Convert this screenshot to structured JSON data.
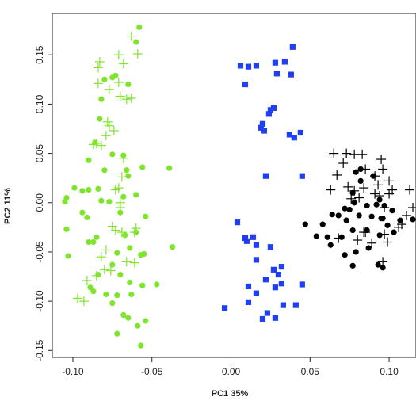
{
  "chart_data": {
    "type": "scatter",
    "title": "",
    "xlabel": "PC1 35%",
    "ylabel": "PC2 11%",
    "xlim": [
      -0.113,
      0.117
    ],
    "ylim": [
      -0.157,
      0.192
    ],
    "xticks": [
      -0.1,
      -0.05,
      0.0,
      0.05,
      0.1
    ],
    "xtick_labels": [
      "-0.10",
      "-0.05",
      "0.00",
      "0.05",
      "0.10"
    ],
    "yticks": [
      -0.15,
      -0.1,
      -0.05,
      0.0,
      0.05,
      0.1,
      0.15
    ],
    "ytick_labels": [
      "-0.15",
      "-0.10",
      "-0.05",
      "0.00",
      "0.05",
      "0.10",
      "0.15"
    ],
    "grid": false,
    "legend": "none",
    "series": [
      {
        "color": "#7ee62a",
        "marker": "circle",
        "points": [
          [
            -0.058,
            0.178
          ],
          [
            -0.06,
            0.163
          ],
          [
            -0.073,
            0.129
          ],
          [
            -0.075,
            0.127
          ],
          [
            -0.065,
            0.12
          ],
          [
            -0.08,
            0.125
          ],
          [
            -0.082,
            0.105
          ],
          [
            -0.083,
            0.085
          ],
          [
            -0.086,
            0.061
          ],
          [
            -0.09,
            0.043
          ],
          [
            -0.075,
            0.049
          ],
          [
            -0.068,
            0.048
          ],
          [
            -0.066,
            0.033
          ],
          [
            -0.08,
            0.033
          ],
          [
            -0.065,
            0.027
          ],
          [
            -0.056,
            0.036
          ],
          [
            -0.039,
            0.035
          ],
          [
            -0.09,
            0.013
          ],
          [
            -0.084,
            0.014
          ],
          [
            -0.094,
            0.012
          ],
          [
            -0.099,
            0.015
          ],
          [
            -0.104,
            0.005
          ],
          [
            -0.105,
            0.001
          ],
          [
            -0.082,
            0.002
          ],
          [
            -0.077,
            0.001
          ],
          [
            -0.068,
            0.006
          ],
          [
            -0.06,
            0.008
          ],
          [
            -0.054,
            -0.014
          ],
          [
            -0.07,
            -0.01
          ],
          [
            -0.094,
            -0.01
          ],
          [
            -0.091,
            -0.015
          ],
          [
            -0.104,
            -0.027
          ],
          [
            -0.085,
            -0.035
          ],
          [
            -0.09,
            -0.04
          ],
          [
            -0.067,
            -0.033
          ],
          [
            -0.06,
            -0.03
          ],
          [
            -0.072,
            -0.051
          ],
          [
            -0.103,
            -0.054
          ],
          [
            -0.087,
            -0.04
          ],
          [
            -0.064,
            -0.046
          ],
          [
            -0.057,
            -0.053
          ],
          [
            -0.055,
            -0.052
          ],
          [
            -0.037,
            -0.045
          ],
          [
            -0.075,
            -0.063
          ],
          [
            -0.07,
            -0.073
          ],
          [
            -0.084,
            -0.073
          ],
          [
            -0.089,
            -0.086
          ],
          [
            -0.087,
            -0.09
          ],
          [
            -0.079,
            -0.093
          ],
          [
            -0.072,
            -0.094
          ],
          [
            -0.056,
            -0.084
          ],
          [
            -0.064,
            -0.081
          ],
          [
            -0.047,
            -0.083
          ],
          [
            -0.063,
            -0.093
          ],
          [
            -0.075,
            -0.102
          ],
          [
            -0.068,
            -0.114
          ],
          [
            -0.065,
            -0.117
          ],
          [
            -0.054,
            -0.12
          ],
          [
            -0.059,
            -0.125
          ],
          [
            -0.072,
            -0.133
          ],
          [
            -0.057,
            -0.145
          ]
        ]
      },
      {
        "color": "#7ee62a",
        "marker": "plus",
        "points": [
          [
            -0.063,
            0.169
          ],
          [
            -0.059,
            0.151
          ],
          [
            -0.071,
            0.15
          ],
          [
            -0.083,
            0.143
          ],
          [
            -0.084,
            0.137
          ],
          [
            -0.068,
            0.141
          ],
          [
            -0.071,
            0.122
          ],
          [
            -0.077,
            0.115
          ],
          [
            -0.063,
            0.106
          ],
          [
            -0.084,
            0.121
          ],
          [
            -0.066,
            0.105
          ],
          [
            -0.07,
            0.108
          ],
          [
            -0.077,
            0.078
          ],
          [
            -0.078,
            0.082
          ],
          [
            -0.074,
            0.073
          ],
          [
            -0.079,
            0.068
          ],
          [
            -0.082,
            0.058
          ],
          [
            -0.085,
            0.06
          ],
          [
            -0.087,
            0.059
          ],
          [
            -0.068,
            0.045
          ],
          [
            -0.069,
            0.026
          ],
          [
            -0.071,
            0.015
          ],
          [
            -0.073,
            0.013
          ],
          [
            -0.07,
            0.0
          ],
          [
            -0.07,
            -0.005
          ],
          [
            -0.075,
            -0.024
          ],
          [
            -0.061,
            -0.03
          ],
          [
            -0.073,
            -0.028
          ],
          [
            -0.06,
            -0.026
          ],
          [
            -0.069,
            -0.03
          ],
          [
            -0.079,
            -0.048
          ],
          [
            -0.082,
            -0.055
          ],
          [
            -0.061,
            -0.061
          ],
          [
            -0.066,
            -0.06
          ],
          [
            -0.085,
            -0.074
          ],
          [
            -0.076,
            -0.069
          ],
          [
            -0.091,
            -0.079
          ],
          [
            -0.08,
            -0.068
          ],
          [
            -0.097,
            -0.097
          ],
          [
            -0.093,
            -0.1
          ]
        ]
      },
      {
        "color": "#1f3ff0",
        "marker": "square",
        "points": [
          [
            0.039,
            0.158
          ],
          [
            0.028,
            0.142
          ],
          [
            0.034,
            0.143
          ],
          [
            0.006,
            0.139
          ],
          [
            0.011,
            0.138
          ],
          [
            0.016,
            0.139
          ],
          [
            0.029,
            0.131
          ],
          [
            0.009,
            0.12
          ],
          [
            0.038,
            0.13
          ],
          [
            0.027,
            0.096
          ],
          [
            0.025,
            0.094
          ],
          [
            0.024,
            0.09
          ],
          [
            0.02,
            0.08
          ],
          [
            0.019,
            0.076
          ],
          [
            0.021,
            0.073
          ],
          [
            0.037,
            0.069
          ],
          [
            0.04,
            0.066
          ],
          [
            0.044,
            0.071
          ],
          [
            0.022,
            0.027
          ],
          [
            0.045,
            0.027
          ],
          [
            0.004,
            -0.02
          ],
          [
            0.014,
            -0.035
          ],
          [
            0.01,
            -0.039
          ],
          [
            0.016,
            -0.043
          ],
          [
            0.025,
            -0.045
          ],
          [
            0.016,
            -0.058
          ],
          [
            0.009,
            -0.036
          ],
          [
            0.027,
            -0.068
          ],
          [
            0.032,
            -0.065
          ],
          [
            0.03,
            -0.073
          ],
          [
            0.011,
            -0.085
          ],
          [
            0.022,
            -0.078
          ],
          [
            0.028,
            -0.086
          ],
          [
            0.032,
            -0.082
          ],
          [
            0.045,
            -0.083
          ],
          [
            0.011,
            -0.101
          ],
          [
            0.016,
            -0.092
          ],
          [
            0.033,
            -0.104
          ],
          [
            0.041,
            -0.104
          ],
          [
            0.023,
            -0.112
          ],
          [
            0.02,
            -0.118
          ],
          [
            0.028,
            -0.117
          ],
          [
            -0.004,
            -0.107
          ]
        ]
      },
      {
        "color": "#000000",
        "marker": "circle",
        "points": [
          [
            0.082,
            0.034
          ],
          [
            0.079,
            0.031
          ],
          [
            0.09,
            0.027
          ],
          [
            0.082,
            0.022
          ],
          [
            0.077,
            0.01
          ],
          [
            0.078,
            0.0
          ],
          [
            0.094,
            0.003
          ],
          [
            0.086,
            -0.003
          ],
          [
            0.097,
            -0.003
          ],
          [
            0.092,
            -0.002
          ],
          [
            0.072,
            -0.006
          ],
          [
            0.075,
            -0.007
          ],
          [
            0.068,
            -0.013
          ],
          [
            0.081,
            -0.013
          ],
          [
            0.089,
            -0.014
          ],
          [
            0.095,
            -0.016
          ],
          [
            0.064,
            -0.012
          ],
          [
            0.058,
            -0.022
          ],
          [
            0.047,
            -0.022
          ],
          [
            0.073,
            -0.018
          ],
          [
            0.096,
            -0.016
          ],
          [
            0.102,
            -0.008
          ],
          [
            0.107,
            -0.018
          ],
          [
            0.115,
            -0.017
          ],
          [
            0.077,
            -0.028
          ],
          [
            0.086,
            -0.028
          ],
          [
            0.07,
            -0.035
          ],
          [
            0.099,
            -0.023
          ],
          [
            0.103,
            -0.03
          ],
          [
            0.054,
            -0.034
          ],
          [
            0.061,
            -0.035
          ],
          [
            0.063,
            -0.043
          ],
          [
            0.072,
            -0.053
          ],
          [
            0.079,
            -0.05
          ],
          [
            0.087,
            -0.046
          ],
          [
            0.094,
            -0.033
          ],
          [
            0.077,
            -0.064
          ],
          [
            0.096,
            -0.066
          ],
          [
            0.093,
            -0.063
          ],
          [
            0.078,
            0.0
          ]
        ]
      },
      {
        "color": "#000000",
        "marker": "plus",
        "points": [
          [
            0.065,
            0.05
          ],
          [
            0.073,
            0.05
          ],
          [
            0.078,
            0.049
          ],
          [
            0.083,
            0.049
          ],
          [
            0.095,
            0.044
          ],
          [
            0.071,
            0.04
          ],
          [
            0.085,
            0.034
          ],
          [
            0.096,
            0.034
          ],
          [
            0.067,
            0.028
          ],
          [
            0.091,
            0.027
          ],
          [
            0.1,
            0.022
          ],
          [
            0.093,
            0.018
          ],
          [
            0.074,
            0.016
          ],
          [
            0.078,
            0.012
          ],
          [
            0.084,
            0.015
          ],
          [
            0.091,
            0.009
          ],
          [
            0.1,
            0.009
          ],
          [
            0.063,
            0.013
          ],
          [
            0.076,
            0.004
          ],
          [
            0.081,
            0.005
          ],
          [
            0.094,
            0.007
          ],
          [
            0.097,
            -0.005
          ],
          [
            0.102,
            0.013
          ],
          [
            0.113,
            0.013
          ],
          [
            0.115,
            -0.005
          ],
          [
            0.111,
            -0.013
          ],
          [
            0.084,
            -0.03
          ],
          [
            0.097,
            -0.032
          ],
          [
            0.108,
            -0.022
          ],
          [
            0.068,
            -0.036
          ],
          [
            0.089,
            -0.041
          ],
          [
            0.099,
            -0.04
          ],
          [
            0.08,
            -0.038
          ],
          [
            0.096,
            -0.06
          ],
          [
            0.106,
            -0.025
          ],
          [
            0.085,
            -0.03
          ]
        ]
      }
    ]
  }
}
